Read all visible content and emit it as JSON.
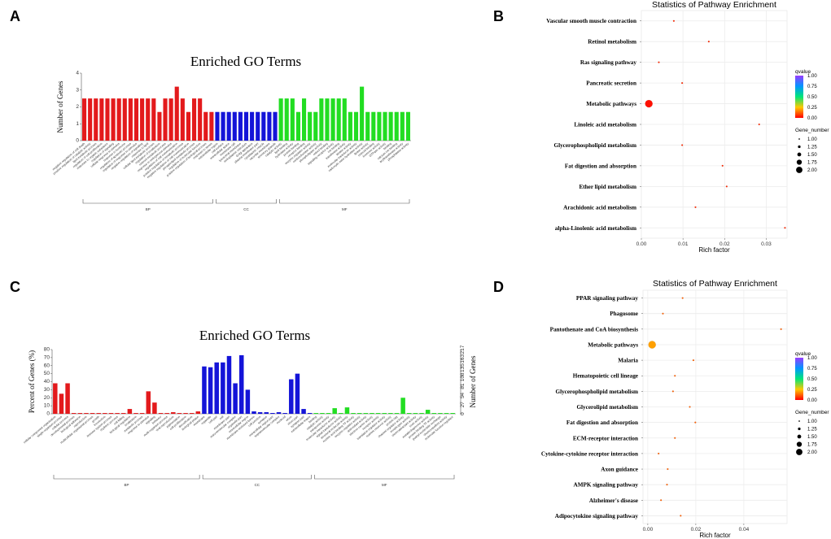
{
  "panel_letters": [
    "A",
    "B",
    "C",
    "D"
  ],
  "colors": {
    "bp": "#e31a1c",
    "cc": "#1414d8",
    "mf": "#22dd22",
    "grid": "#ececec"
  },
  "chart_data": [
    {
      "panel": "A",
      "type": "bar",
      "title": "Enriched GO Terms",
      "ylabel": "Number of Genes",
      "ylim": [
        0,
        4
      ],
      "yticks": [
        0,
        1,
        2,
        3,
        4
      ],
      "groups": [
        {
          "name": "BP",
          "count": 23
        },
        {
          "name": "CC",
          "count": 11
        },
        {
          "name": "MF",
          "count": 23
        }
      ],
      "categories": [
        "negative regulation of cell death",
        "positive regulation of catalytic activity",
        "lipid metabolic process",
        "regulation of cell proliferation",
        "response to organic substance",
        "regulation of signaling",
        "cellular response to stimulus",
        "response to hormone",
        "regulation of apoptotic process",
        "regulation of response to stimulus",
        "negative regulation of signaling",
        "response to lipid",
        "cellular lipid metabolic process",
        "regulation of localization",
        "retinoid metabolic process",
        "response to endogenous stimulus",
        "regulation of cell communication",
        "positive regulation of metabolic process",
        "negative regulation of cell communication",
        "phospholipid metabolic process",
        "regulation of molecular function",
        "positive regulation of biological process",
        "response to stress",
        "extracellular region",
        "cell surface",
        "extracellular space",
        "membrane raft",
        "lysosomal membrane",
        "endoplasmic reticulum",
        "Golgi apparatus",
        "plasma membrane part",
        "cytoplasmic vesicle",
        "vacuolar membrane",
        "secretory granule",
        "catalytic activity",
        "lipid binding",
        "hydrolase activity",
        "protein binding",
        "receptor binding",
        "enzyme regulator activity",
        "oxidoreductase activity",
        "phospholipase activity",
        "retinol binding",
        "signaling receptor activity",
        "ion binding",
        "transferase activity",
        "kinase activity",
        "molecular transducer activity",
        "carboxylic ester hydrolase activity",
        "lipase activity",
        "retinoid binding",
        "hormone activity",
        "GTPase activity",
        "binding",
        "calcium ion binding",
        "acyltransferase activity",
        "phosphatase activity"
      ],
      "values": [
        2.5,
        2.5,
        2.5,
        2.5,
        2.5,
        2.5,
        2.5,
        2.5,
        2.5,
        2.5,
        2.5,
        2.5,
        2.5,
        1.7,
        2.5,
        2.5,
        3.2,
        2.5,
        1.7,
        2.5,
        2.5,
        1.7,
        1.7,
        1.7,
        1.7,
        1.7,
        1.7,
        1.7,
        1.7,
        1.7,
        1.7,
        1.7,
        1.7,
        1.7,
        2.5,
        2.5,
        2.5,
        1.7,
        2.5,
        1.7,
        1.7,
        2.5,
        2.5,
        2.5,
        2.5,
        2.5,
        1.7,
        1.7,
        3.2,
        1.7,
        1.7,
        1.7,
        1.7,
        1.7,
        1.7,
        1.7,
        1.7
      ]
    },
    {
      "panel": "B",
      "type": "scatter",
      "title": "Statistics of Pathway Enrichment",
      "xlabel": "Rich factor",
      "xlim": [
        0,
        0.035
      ],
      "xticks": [
        0.0,
        0.01,
        0.02,
        0.03
      ],
      "xtick_labels": [
        "0.00",
        "0.01",
        "0.02",
        "0.03"
      ],
      "pathways": [
        "Vascular smooth muscle contraction",
        "Retinol metabolism",
        "Ras signaling pathway",
        "Pancreatic secretion",
        "Metabolic pathways",
        "Linoleic acid metabolism",
        "Glycerophospholipid metabolism",
        "Fat digestion and absorption",
        "Ether lipid metabolism",
        "Arachidonic acid metabolism",
        "alpha-Linolenic acid metabolism"
      ],
      "rich_factor": [
        0.0078,
        0.0162,
        0.0042,
        0.0098,
        0.0018,
        0.0283,
        0.0098,
        0.0195,
        0.0205,
        0.013,
        0.0345
      ],
      "qvalue": [
        0.05,
        0.05,
        0.05,
        0.05,
        0.02,
        0.05,
        0.05,
        0.05,
        0.05,
        0.05,
        0.05
      ],
      "gene_number": [
        1,
        1,
        1,
        1,
        2,
        1,
        1,
        1,
        1,
        1,
        1
      ],
      "legend_q": {
        "title": "qvalue",
        "ticks": [
          "1.00",
          "0.75",
          "0.50",
          "0.25",
          "0.00"
        ]
      },
      "legend_size": {
        "title": "Gene_number",
        "ticks": [
          "1.00",
          "1.25",
          "1.50",
          "1.75",
          "2.00"
        ]
      }
    },
    {
      "panel": "C",
      "type": "bar",
      "title": "Enriched GO Terms",
      "ylabel": "Percent of Genes (%)",
      "ylabel_right": "Number of Genes",
      "ylim": [
        0,
        80
      ],
      "yticks": [
        0,
        10,
        20,
        30,
        40,
        50,
        60,
        70,
        80
      ],
      "right_ticks": [
        "0",
        "27",
        "54",
        "81",
        "108",
        "135",
        "163",
        "217"
      ],
      "groups": [
        {
          "name": "BP",
          "count": 24
        },
        {
          "name": "CC",
          "count": 18
        },
        {
          "name": "MF",
          "count": 23
        }
      ],
      "categories": [
        "cellular component organization",
        "single-organism process",
        "cellular process",
        "developmental process",
        "biological adhesion",
        "reproduction",
        "multicellular organismal process",
        "growth",
        "locomotion",
        "immune system process",
        "rhythmic process",
        "cell killing",
        "biological regulation",
        "localization",
        "metabolic process",
        "response to stimulus",
        "signaling",
        "behavior",
        "multi-organism process",
        "viral reproduction",
        "pigmentation",
        "cell proliferation",
        "detoxification",
        "biological phase",
        "membrane",
        "organelle",
        "cell part",
        "cell",
        "membrane part",
        "macromolecular complex",
        "organelle part",
        "extracellular region",
        "membrane-enclosed lumen",
        "cell junction",
        "synapse",
        "extracellular region part",
        "supramolecular complex",
        "nucleoid",
        "virion",
        "virion part",
        "synapse part",
        "extracellular matrix",
        "binding",
        "catalytic activity",
        "transporter activity",
        "molecular transducer activity",
        "signal transducer activity",
        "structural molecule activity",
        "nucleic acid binding TF activity",
        "enzyme regulator activity",
        "antioxidant activity",
        "electron carrier activity",
        "receptor activity",
        "translation regulator activity",
        "nutrient reservoir activity",
        "protein tag",
        "channel regulator activity",
        "morphogen activity",
        "chemoattractant activity",
        "toxin activity",
        "metallochaperone activity",
        "protein binding TF activity",
        "guanyl nucleotide exchange",
        "chemorepellent activity",
        "molecular function regulator"
      ],
      "values": [
        38,
        25,
        38,
        1,
        1,
        1,
        1,
        1,
        1,
        1,
        1,
        1,
        6,
        1,
        1,
        28,
        14,
        1,
        1,
        2,
        1,
        1,
        1,
        3,
        59,
        58,
        64,
        64,
        72,
        38,
        73,
        30,
        3,
        2,
        2,
        1,
        2,
        1,
        43,
        50,
        6,
        1,
        1,
        1,
        1,
        7,
        1,
        8,
        1,
        1,
        1,
        1,
        1,
        1,
        1,
        1,
        20,
        1,
        1,
        1,
        5,
        1,
        1,
        1,
        1
      ]
    },
    {
      "panel": "D",
      "type": "scatter",
      "title": "Statistics of Pathway Enrichment",
      "xlabel": "Rich factor",
      "xlim": [
        -0.002,
        0.058
      ],
      "xticks": [
        0.0,
        0.02,
        0.04
      ],
      "xtick_labels": [
        "0.00",
        "0.02",
        "0.04"
      ],
      "pathways": [
        "PPAR signaling pathway",
        "Phagosome",
        "Pantothenate and CoA biosynthesis",
        "Metabolic pathways",
        "Malaria",
        "Hematopoietic cell lineage",
        "Glycerophospholipid metabolism",
        "Glycerolipid metabolism",
        "Fat digestion and absorption",
        "ECM-receptor interaction",
        "Cytokine-cytokine receptor interaction",
        "Axon guidance",
        "AMPK signaling pathway",
        "Alzheimer's disease",
        "Adipocytokine signaling pathway"
      ],
      "rich_factor": [
        0.0145,
        0.0063,
        0.0555,
        0.0018,
        0.019,
        0.0113,
        0.0105,
        0.0175,
        0.0198,
        0.0113,
        0.0045,
        0.0083,
        0.008,
        0.0055,
        0.0137
      ],
      "qvalue": [
        0.12,
        0.12,
        0.12,
        0.2,
        0.12,
        0.12,
        0.12,
        0.12,
        0.12,
        0.12,
        0.12,
        0.12,
        0.12,
        0.12,
        0.12
      ],
      "gene_number": [
        1,
        1,
        1,
        2,
        1,
        1,
        1,
        1,
        1,
        1,
        1,
        1,
        1,
        1,
        1
      ],
      "legend_q": {
        "title": "qvalue",
        "ticks": [
          "1.00",
          "0.75",
          "0.50",
          "0.25",
          "0.00"
        ]
      },
      "legend_size": {
        "title": "Gene_number",
        "ticks": [
          "1.00",
          "1.25",
          "1.50",
          "1.75",
          "2.00"
        ]
      }
    }
  ]
}
